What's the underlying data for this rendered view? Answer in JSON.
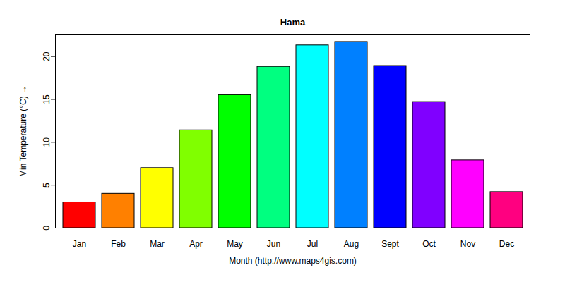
{
  "chart_data": {
    "type": "bar",
    "title": "Hama",
    "x_label": "Month (http://www.maps4gis.com)",
    "y_label": "Min Temperature (°C)",
    "categories": [
      "Jan",
      "Feb",
      "Mar",
      "Apr",
      "May",
      "Jun",
      "Jul",
      "Aug",
      "Sept",
      "Oct",
      "Nov",
      "Dec"
    ],
    "values": [
      3.0,
      4.0,
      7.0,
      11.4,
      15.5,
      18.8,
      21.3,
      21.7,
      18.9,
      14.7,
      7.9,
      4.2
    ],
    "colors": [
      "#FF0000",
      "#FF8000",
      "#FFFF00",
      "#80FF00",
      "#00FF00",
      "#00FF80",
      "#00FFFF",
      "#0080FF",
      "#0000FF",
      "#8000FF",
      "#FF00FF",
      "#FF0080"
    ],
    "ylim": [
      0,
      22.6
    ],
    "yticks": [
      0,
      5,
      10,
      15,
      20
    ],
    "grid": false
  }
}
